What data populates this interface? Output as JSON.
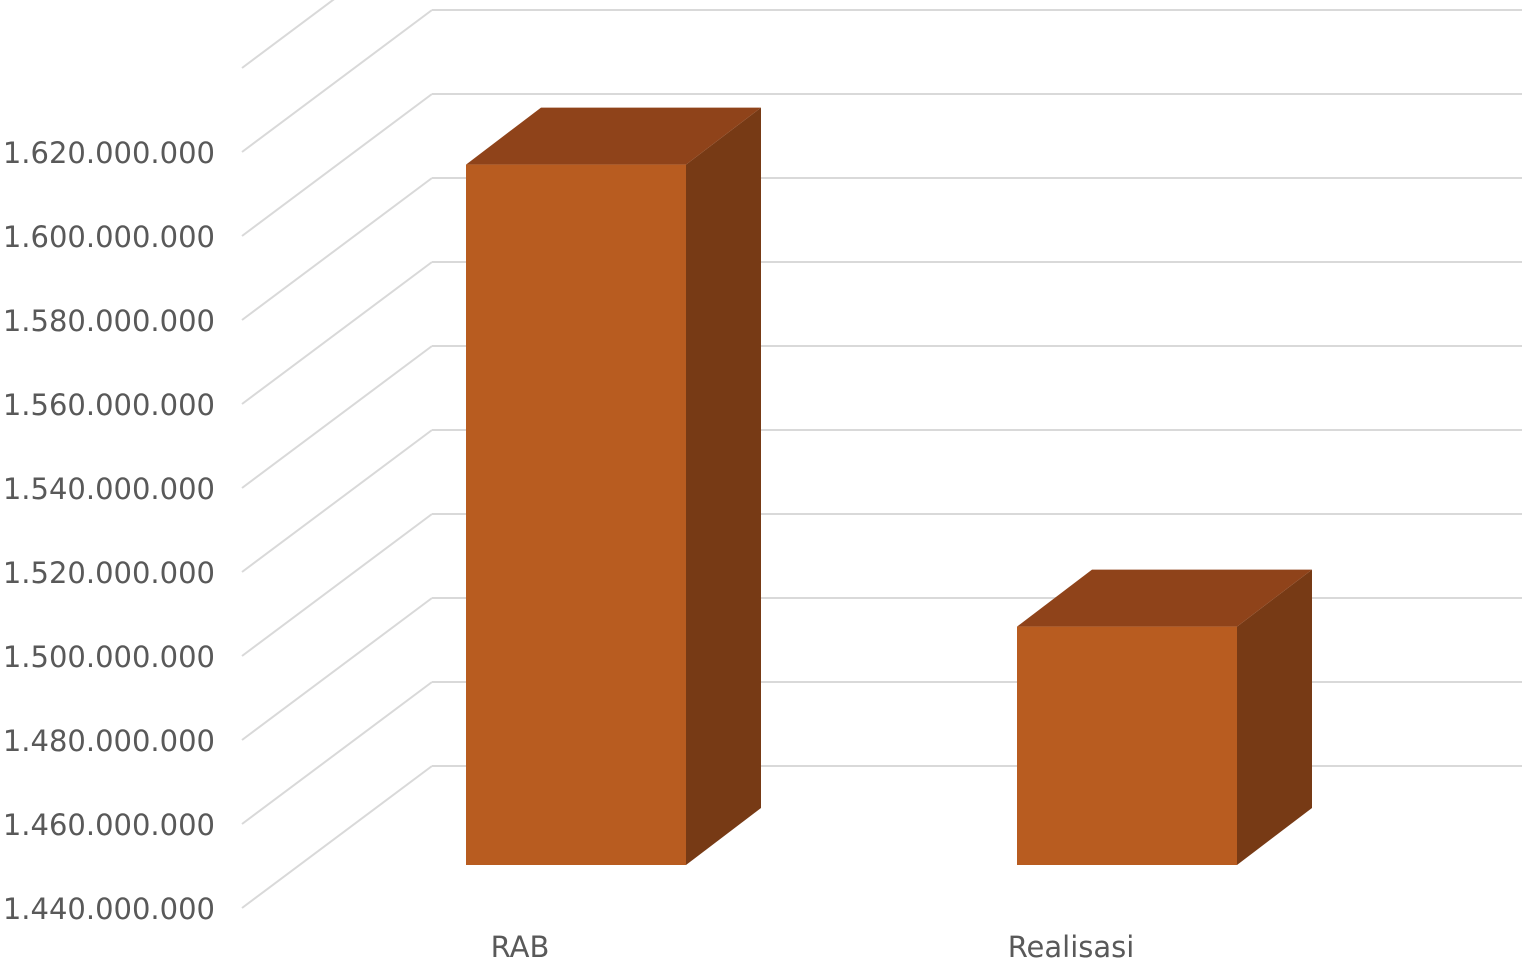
{
  "chart_data": {
    "type": "bar",
    "style": "3d-column",
    "categories": [
      "RAB",
      "Realisasi"
    ],
    "values": [
      1617000000,
      1507000000
    ],
    "title": "",
    "xlabel": "",
    "ylabel": "",
    "ylim": [
      1440000000,
      1620000000
    ],
    "ytick_values": [
      1440000000,
      1460000000,
      1480000000,
      1500000000,
      1520000000,
      1540000000,
      1560000000,
      1580000000,
      1600000000,
      1620000000
    ],
    "ytick_labels": [
      "1.440.000.000",
      "1.460.000.000",
      "1.480.000.000",
      "1.500.000.000",
      "1.520.000.000",
      "1.540.000.000",
      "1.560.000.000",
      "1.580.000.000",
      "1.600.000.000",
      "1.620.000.000"
    ],
    "grid": true,
    "legend": "none",
    "colors": {
      "bar_front": "#b85c20",
      "bar_top": "#8f431a",
      "bar_side": "#773a15",
      "grid": "#d9d9d9",
      "text": "#595959"
    }
  }
}
